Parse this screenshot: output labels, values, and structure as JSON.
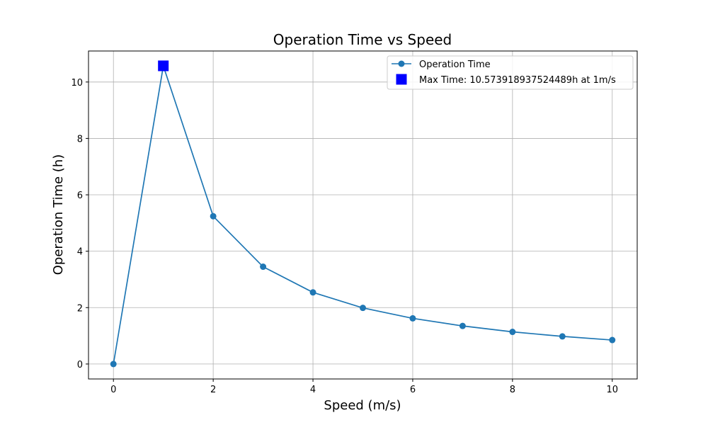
{
  "chart_data": {
    "type": "line",
    "title": "Operation Time vs Speed",
    "xlabel": "Speed (m/s)",
    "ylabel": "Operation Time (h)",
    "xlim": [
      -0.5,
      10.5
    ],
    "ylim": [
      -0.53,
      11.1
    ],
    "xticks": [
      0,
      2,
      4,
      6,
      8,
      10
    ],
    "yticks": [
      0,
      2,
      4,
      6,
      8,
      10
    ],
    "grid": true,
    "legend_position": "top-right",
    "series": [
      {
        "name": "Operation Time",
        "color": "#1f77b4",
        "marker": "circle",
        "x": [
          0,
          1,
          2,
          3,
          4,
          5,
          6,
          7,
          8,
          9,
          10
        ],
        "y": [
          0,
          10.57,
          5.24,
          3.45,
          2.54,
          1.99,
          1.62,
          1.35,
          1.14,
          0.98,
          0.85
        ]
      }
    ],
    "highlight": {
      "name": "Max Time: 10.573918937524489h at 1m/s",
      "color": "#0000ff",
      "marker": "square",
      "x": 1,
      "y": 10.573918937524489
    }
  }
}
